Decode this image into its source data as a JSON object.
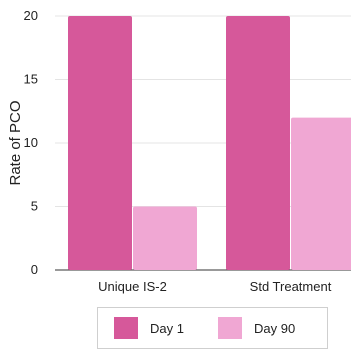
{
  "chart_data": {
    "type": "bar",
    "categories": [
      "Unique IS-2",
      "Std Treatment"
    ],
    "series": [
      {
        "name": "Day 1",
        "values": [
          20,
          20
        ],
        "color": "#d6589a"
      },
      {
        "name": "Day 90",
        "values": [
          5,
          12
        ],
        "color": "#f0a7d3"
      }
    ],
    "ylabel": "Rate of PCO",
    "ylim": [
      0,
      20
    ],
    "yticks": [
      "0",
      "5",
      "10",
      "15",
      "20"
    ],
    "grid": true,
    "legend_position": "bottom"
  }
}
